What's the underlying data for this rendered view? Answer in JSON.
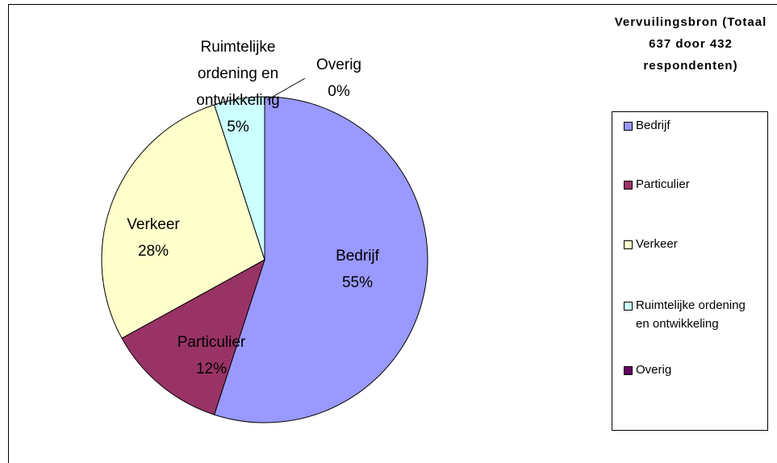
{
  "chart_data": {
    "type": "pie",
    "title": "Vervuilingsbron (Totaal 637 door 432 respondenten)",
    "categories": [
      "Bedrijf",
      "Particulier",
      "Verkeer",
      "Ruimtelijke ordening en ontwikkeling",
      "Overig"
    ],
    "values": [
      55,
      12,
      28,
      5,
      0
    ],
    "value_labels": [
      "55%",
      "12%",
      "28%",
      "5%",
      "0%"
    ],
    "colors": [
      "#9999ff",
      "#993366",
      "#ffffcc",
      "#ccffff",
      "#660066"
    ],
    "legend": "right"
  }
}
